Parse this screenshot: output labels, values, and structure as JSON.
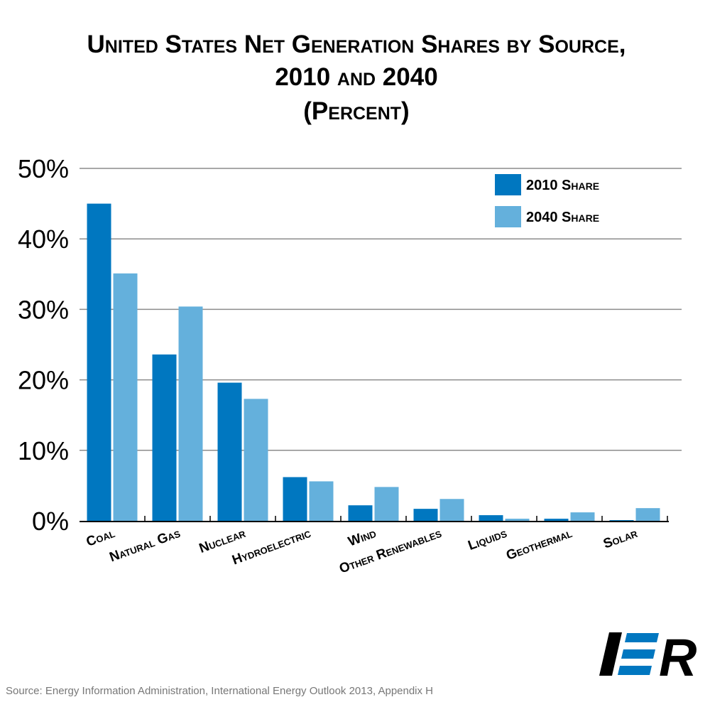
{
  "chart_data": {
    "type": "bar",
    "title": [
      "United States Net Generation Shares by Source,",
      "2010 and 2040",
      "(Percent)"
    ],
    "categories": [
      "Coal",
      "Natural Gas",
      "Nuclear",
      "Hydroelectric",
      "Wind",
      "Other Renewables",
      "Liquids",
      "Geothermal",
      "Solar"
    ],
    "series": [
      {
        "name": "2010 Share",
        "values": [
          45,
          23.6,
          19.6,
          6.2,
          2.2,
          1.7,
          0.8,
          0.3,
          0.1
        ],
        "color": "#0077c0"
      },
      {
        "name": "2040 Share",
        "values": [
          35.1,
          30.4,
          17.3,
          5.6,
          4.8,
          3.1,
          0.3,
          1.2,
          1.8
        ],
        "color": "#64b0dc"
      }
    ],
    "yticks": [
      "0%",
      "10%",
      "20%",
      "30%",
      "40%",
      "50%"
    ],
    "ylim": [
      0,
      50
    ],
    "grid": true,
    "legend_position": "top-right"
  },
  "source": "Source: Energy Information Administration, International Energy Outlook 2013, Appendix H",
  "logo": {
    "text": "IER",
    "color": "#0077c0"
  }
}
